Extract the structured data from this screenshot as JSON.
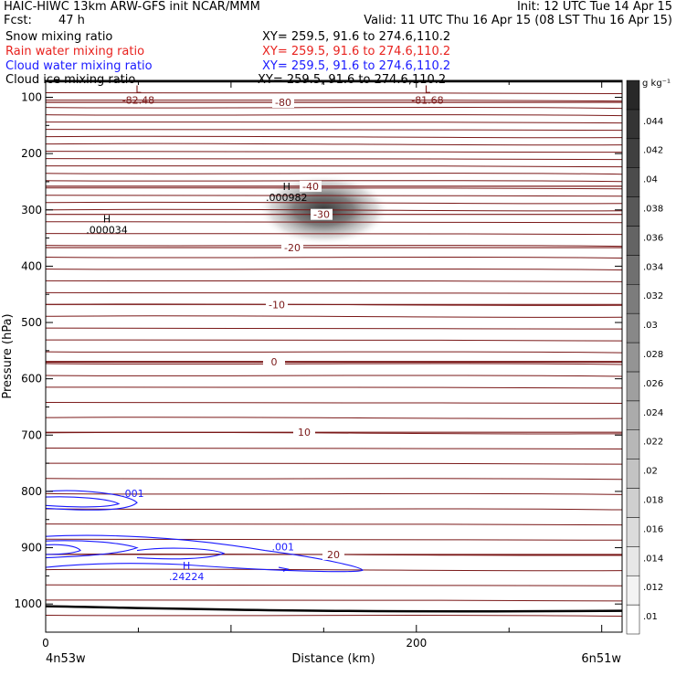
{
  "header": {
    "left_line1": "HAIC-HIWC 13km ARW-GFS init   NCAR/MMM",
    "right_line1": "Init: 12 UTC Tue 14 Apr 15",
    "fcst_label": "Fcst:",
    "fcst_value": "47 h",
    "valid": "Valid: 11 UTC Thu 16 Apr 15 (08 LST Thu 16 Apr 15)"
  },
  "fields": [
    {
      "label": "Snow mixing ratio",
      "xy": "XY= 259.5, 91.6 to 274.6,110.2",
      "color": "#000000"
    },
    {
      "label": "Rain water mixing ratio",
      "xy": "XY= 259.5, 91.6 to 274.6,110.2",
      "color": "#e8231f"
    },
    {
      "label": "Cloud water mixing ratio",
      "xy": "XY= 259.5, 91.6 to 274.6,110.2",
      "color": "#1a1aff"
    },
    {
      "label": "Cloud ice mixing ratio",
      "xy": "XY= 259.5, 91.6 to 274.6,110.2",
      "color": "#000000"
    }
  ],
  "colorbar": {
    "unit": "g kg⁻¹",
    "ticks": [
      ".01",
      ".012",
      ".014",
      ".016",
      ".018",
      ".02",
      ".022",
      ".024",
      ".026",
      ".028",
      ".03",
      ".032",
      ".034",
      ".036",
      ".038",
      ".04",
      ".042",
      ".044"
    ]
  },
  "chart_data": {
    "type": "contour",
    "xlabel": "Distance (km)",
    "ylabel": "Pressure (hPa)",
    "xlim": [
      0,
      311
    ],
    "ylim": [
      1050,
      70
    ],
    "x_ticks": [
      {
        "v": 0,
        "label": "0"
      },
      {
        "v": 200,
        "label": "200"
      }
    ],
    "x_endpoints": {
      "left": "4n53w",
      "right": "6n51w"
    },
    "y_ticks": [
      100,
      200,
      300,
      400,
      500,
      600,
      700,
      800,
      900,
      1000
    ],
    "temperature_contours": [
      {
        "level": "-80",
        "p": 109
      },
      {
        "level": "-40",
        "p": 258
      },
      {
        "level": "-30",
        "p": 308
      },
      {
        "level": "-20",
        "p": 367
      },
      {
        "level": "-10",
        "p": 468
      },
      {
        "level": "0",
        "p": 570
      },
      {
        "level": "10",
        "p": 695
      },
      {
        "level": "20",
        "p": 912
      }
    ],
    "extrema": [
      {
        "type": "L",
        "value": "-82.48",
        "x": 50,
        "p": 92
      },
      {
        "type": "L",
        "value": "-81.68",
        "x": 206,
        "p": 92
      },
      {
        "type": "H",
        "value": ".000982",
        "x": 130,
        "p": 265
      },
      {
        "type": "H",
        "value": ".000034",
        "x": 33,
        "p": 322
      },
      {
        "type": "H",
        "value": ".24224",
        "x": 76,
        "p": 938
      }
    ],
    "cloud_water_labels": [
      {
        "value": ".001",
        "x": 41,
        "p": 810
      },
      {
        "value": ".001",
        "x": 122,
        "p": 905
      }
    ],
    "ice_max": {
      "x": 150,
      "p": 300,
      "value": 0.044
    }
  }
}
